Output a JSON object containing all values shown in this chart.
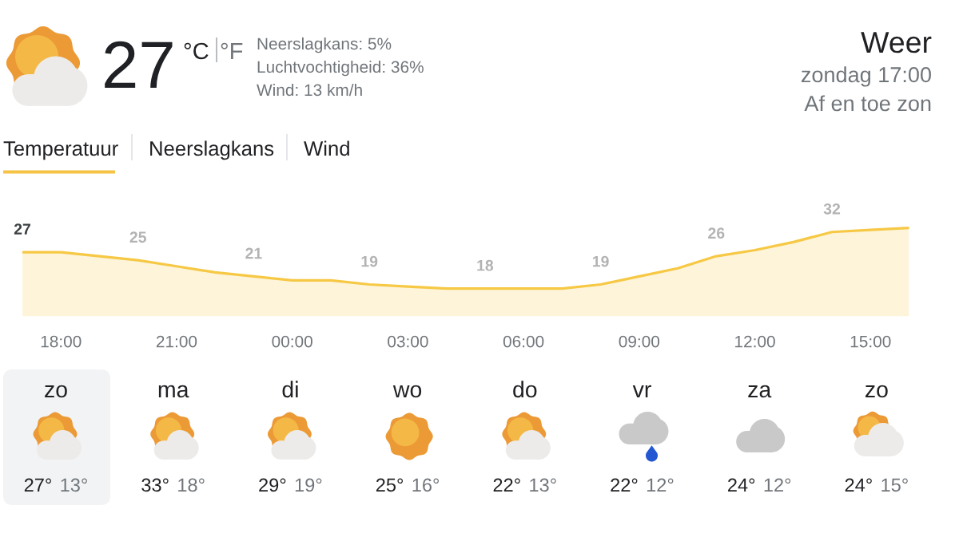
{
  "chart_data": [
    {
      "type": "other",
      "title": "Weer",
      "subtitle": "zondag 17:00",
      "annotations": [
        "27",
        "°C",
        "°F",
        "Neerslagkans: 5%",
        "Luchtvochtigheid: 36%",
        "Wind: 13 km/h",
        "Af en toe zon",
        "Temperatuur",
        "Neerslagkans",
        "Wind"
      ]
    },
    {
      "type": "area",
      "categories": [
        null,
        "18:00",
        null,
        null,
        "21:00",
        null,
        null,
        "00:00",
        null,
        null,
        "03:00",
        null,
        null,
        "06:00",
        null,
        null,
        "09:00",
        null,
        null,
        "12:00",
        null,
        null,
        "15:00",
        null
      ],
      "values": [
        27,
        27,
        26,
        25,
        23.5,
        22,
        21,
        20,
        20,
        19,
        18.5,
        18,
        18,
        18,
        18,
        19,
        21,
        23,
        26,
        27.5,
        29.5,
        32,
        32.5,
        33
      ],
      "value_labels": [
        "27",
        null,
        null,
        "25",
        null,
        null,
        "21",
        null,
        null,
        "19",
        null,
        null,
        "18",
        null,
        null,
        "19",
        null,
        null,
        "26",
        null,
        null,
        "32",
        null,
        null
      ],
      "color": "#f6c844",
      "tick_labels": "x"
    },
    {
      "type": "other",
      "categories": [
        "zo",
        "ma",
        "di",
        "wo",
        "do",
        "vr",
        "za",
        "zo"
      ],
      "annotations": [
        "27°",
        "13°",
        "33°",
        "18°",
        "29°",
        "19°",
        "25°",
        "16°",
        "22°",
        "13°",
        "22°",
        "12°",
        "24°",
        "12°",
        "24°",
        "15°"
      ]
    }
  ]
}
